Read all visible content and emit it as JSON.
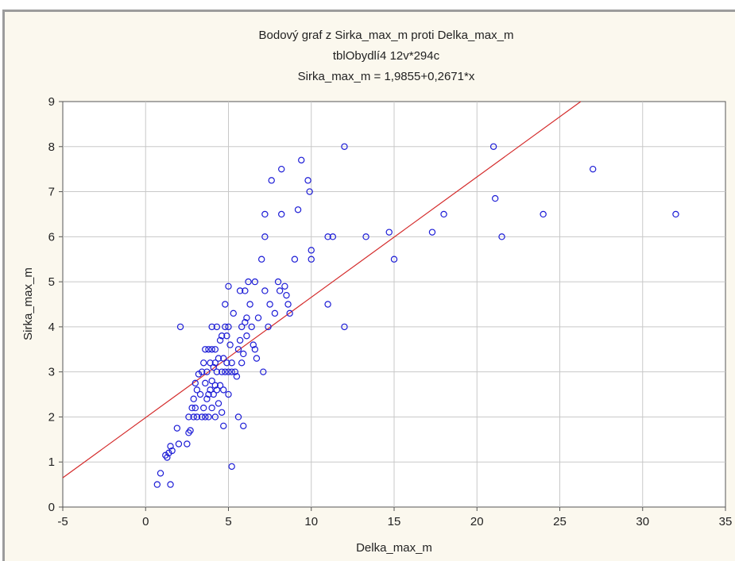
{
  "chart_data": {
    "type": "scatter",
    "title": "Bodový graf z Sirka_max_m proti Delka_max_m",
    "subtitle": "tblObydlí4 12v*294c",
    "equation": "Sirka_max_m = 1,9855+0,2671*x",
    "xlabel": "Delka_max_m",
    "ylabel": "Sirka_max_m",
    "xlim": [
      -5,
      35
    ],
    "ylim": [
      0,
      9
    ],
    "xticks": [
      -5,
      0,
      5,
      10,
      15,
      20,
      25,
      30,
      35
    ],
    "yticks": [
      0,
      1,
      2,
      3,
      4,
      5,
      6,
      7,
      8,
      9
    ],
    "grid": true,
    "regression": {
      "intercept": 1.9855,
      "slope": 0.2671
    },
    "colors": {
      "points": "#1c1cd6",
      "line": "#d42a2a",
      "grid": "#c8c8c8",
      "background": "#ffffff"
    },
    "points": [
      [
        0.7,
        0.5
      ],
      [
        0.9,
        0.75
      ],
      [
        1.2,
        1.15
      ],
      [
        1.3,
        1.1
      ],
      [
        1.4,
        1.2
      ],
      [
        1.5,
        1.35
      ],
      [
        1.6,
        1.25
      ],
      [
        1.5,
        0.5
      ],
      [
        1.9,
        1.75
      ],
      [
        2.0,
        1.4
      ],
      [
        2.1,
        4.0
      ],
      [
        2.5,
        1.4
      ],
      [
        2.6,
        1.65
      ],
      [
        2.6,
        2.0
      ],
      [
        2.7,
        1.7
      ],
      [
        2.8,
        2.2
      ],
      [
        2.9,
        2.4
      ],
      [
        2.9,
        2.0
      ],
      [
        3.0,
        2.75
      ],
      [
        3.0,
        2.2
      ],
      [
        3.1,
        2.6
      ],
      [
        3.1,
        2.0
      ],
      [
        3.2,
        2.95
      ],
      [
        3.3,
        2.5
      ],
      [
        3.4,
        2.0
      ],
      [
        3.4,
        3.0
      ],
      [
        3.5,
        2.2
      ],
      [
        3.5,
        3.2
      ],
      [
        3.6,
        2.0
      ],
      [
        3.6,
        2.75
      ],
      [
        3.6,
        3.5
      ],
      [
        3.7,
        2.4
      ],
      [
        3.7,
        3.0
      ],
      [
        3.8,
        2.0
      ],
      [
        3.8,
        2.5
      ],
      [
        3.8,
        3.5
      ],
      [
        3.9,
        2.6
      ],
      [
        3.9,
        3.2
      ],
      [
        4.0,
        2.2
      ],
      [
        4.0,
        2.8
      ],
      [
        4.0,
        3.5
      ],
      [
        4.0,
        4.0
      ],
      [
        4.1,
        2.5
      ],
      [
        4.1,
        3.1
      ],
      [
        4.2,
        2.0
      ],
      [
        4.2,
        2.7
      ],
      [
        4.2,
        3.5
      ],
      [
        4.2,
        3.2
      ],
      [
        4.3,
        2.6
      ],
      [
        4.3,
        3.0
      ],
      [
        4.3,
        4.0
      ],
      [
        4.4,
        2.3
      ],
      [
        4.4,
        3.3
      ],
      [
        4.5,
        2.7
      ],
      [
        4.5,
        3.7
      ],
      [
        4.6,
        2.1
      ],
      [
        4.6,
        3.0
      ],
      [
        4.6,
        3.8
      ],
      [
        4.7,
        1.8
      ],
      [
        4.7,
        2.6
      ],
      [
        4.7,
        3.3
      ],
      [
        4.8,
        3.0
      ],
      [
        4.8,
        4.0
      ],
      [
        4.8,
        4.5
      ],
      [
        4.9,
        3.2
      ],
      [
        4.9,
        3.8
      ],
      [
        5.0,
        2.5
      ],
      [
        5.0,
        3.0
      ],
      [
        5.0,
        4.9
      ],
      [
        5.0,
        4.0
      ],
      [
        5.1,
        3.6
      ],
      [
        5.2,
        3.0
      ],
      [
        5.2,
        3.2
      ],
      [
        5.2,
        0.9
      ],
      [
        5.3,
        4.3
      ],
      [
        5.4,
        3.0
      ],
      [
        5.5,
        2.9
      ],
      [
        5.6,
        3.5
      ],
      [
        5.6,
        2.0
      ],
      [
        5.7,
        3.7
      ],
      [
        5.7,
        4.8
      ],
      [
        5.8,
        3.2
      ],
      [
        5.8,
        4.0
      ],
      [
        5.9,
        1.8
      ],
      [
        5.9,
        3.4
      ],
      [
        6.0,
        4.1
      ],
      [
        6.0,
        4.8
      ],
      [
        6.1,
        3.8
      ],
      [
        6.1,
        4.2
      ],
      [
        6.2,
        5.0
      ],
      [
        6.3,
        4.5
      ],
      [
        6.4,
        4.0
      ],
      [
        6.5,
        3.6
      ],
      [
        6.6,
        3.5
      ],
      [
        6.6,
        5.0
      ],
      [
        6.7,
        3.3
      ],
      [
        6.8,
        4.2
      ],
      [
        7.0,
        5.5
      ],
      [
        7.1,
        3.0
      ],
      [
        7.2,
        6.0
      ],
      [
        7.2,
        6.5
      ],
      [
        7.2,
        4.8
      ],
      [
        7.4,
        4.0
      ],
      [
        7.5,
        4.5
      ],
      [
        7.6,
        7.25
      ],
      [
        7.8,
        4.3
      ],
      [
        8.0,
        5.0
      ],
      [
        8.1,
        4.8
      ],
      [
        8.2,
        6.5
      ],
      [
        8.2,
        7.5
      ],
      [
        8.4,
        4.9
      ],
      [
        8.5,
        4.7
      ],
      [
        8.6,
        4.5
      ],
      [
        8.7,
        4.3
      ],
      [
        9.0,
        5.5
      ],
      [
        9.2,
        6.6
      ],
      [
        9.4,
        7.7
      ],
      [
        9.8,
        7.25
      ],
      [
        9.9,
        7.0
      ],
      [
        10.0,
        5.7
      ],
      [
        10.0,
        5.5
      ],
      [
        11.0,
        6.0
      ],
      [
        11.0,
        4.5
      ],
      [
        11.3,
        6.0
      ],
      [
        12.0,
        8.0
      ],
      [
        12.0,
        4.0
      ],
      [
        13.3,
        6.0
      ],
      [
        14.7,
        6.1
      ],
      [
        15.0,
        5.5
      ],
      [
        17.3,
        6.1
      ],
      [
        18.0,
        6.5
      ],
      [
        21.0,
        8.0
      ],
      [
        21.1,
        6.85
      ],
      [
        21.5,
        6.0
      ],
      [
        24.0,
        6.5
      ],
      [
        27.0,
        7.5
      ],
      [
        32.0,
        6.5
      ]
    ]
  }
}
